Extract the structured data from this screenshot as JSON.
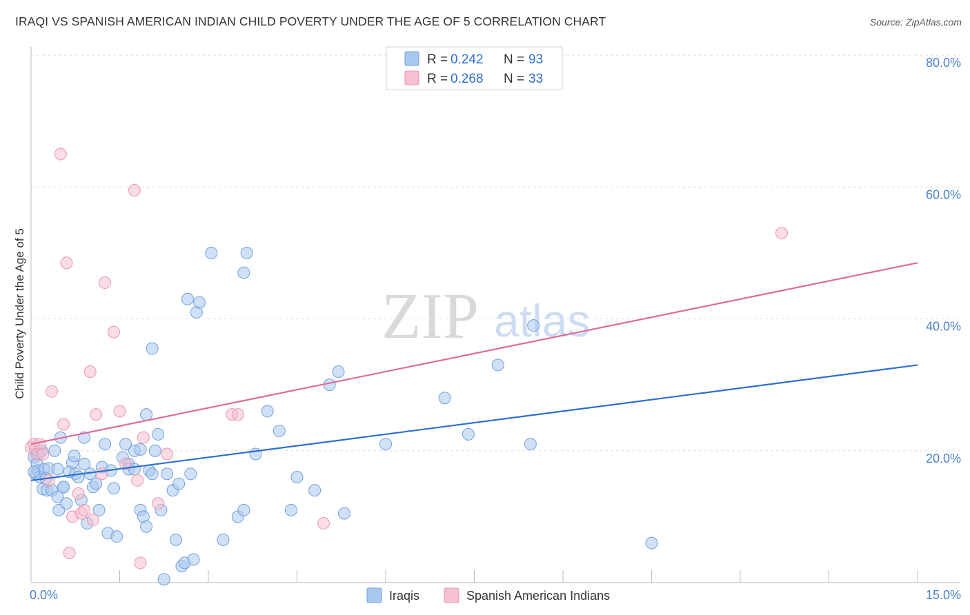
{
  "title": "IRAQI VS SPANISH AMERICAN INDIAN CHILD POVERTY UNDER THE AGE OF 5 CORRELATION CHART",
  "source": "Source: ZipAtlas.com",
  "watermark": {
    "zip": "ZIP",
    "atlas": "atlas"
  },
  "colors": {
    "iraqis_fill": "#a9c8f0",
    "iraqis_stroke": "#6f9fdc",
    "iraqis_line": "#2a6fd0",
    "spanish_fill": "#f6c0d0",
    "spanish_stroke": "#e896b0",
    "spanish_line": "#e06a96",
    "axis_label": "#4a7fcf",
    "grid": "#dddddd"
  },
  "legend": {
    "rows": [
      {
        "r_label": "R =",
        "r_value": "0.242",
        "n_label": "N =",
        "n_value": "93"
      },
      {
        "r_label": "R =",
        "r_value": "0.268",
        "n_label": "N =",
        "n_value": "33"
      }
    ]
  },
  "bottom_legend": [
    "Iraqis",
    "Spanish American Indians"
  ],
  "chart_data": {
    "type": "scatter",
    "title": "IRAQI VS SPANISH AMERICAN INDIAN CHILD POVERTY UNDER THE AGE OF 5 CORRELATION CHART",
    "xlabel": "",
    "ylabel": "Child Poverty Under the Age of 5",
    "xlim": [
      0,
      15
    ],
    "ylim": [
      0,
      80
    ],
    "x_tick_labels": [
      {
        "value": 0,
        "label": "0.0%"
      },
      {
        "value": 15,
        "label": "15.0%"
      }
    ],
    "y_tick_labels": [
      {
        "value": 20,
        "label": "20.0%"
      },
      {
        "value": 40,
        "label": "40.0%"
      },
      {
        "value": 60,
        "label": "60.0%"
      },
      {
        "value": 80,
        "label": "80.0%"
      }
    ],
    "x_minor_ticks": [
      0,
      1.5,
      3,
      4.5,
      6,
      7.5,
      9,
      10.5,
      12,
      13.5,
      15
    ],
    "series": [
      {
        "name": "Iraqis",
        "r": 0.242,
        "n": 93,
        "trend": {
          "x0": 0,
          "y0": 15.5,
          "x1": 15,
          "y1": 33.0
        },
        "points": [
          [
            0.05,
            19.0
          ],
          [
            0.07,
            20.2
          ],
          [
            0.08,
            16.5
          ],
          [
            0.1,
            18.0
          ],
          [
            0.12,
            17.0
          ],
          [
            0.13,
            19.5
          ],
          [
            0.15,
            16.0
          ],
          [
            0.18,
            20.0
          ],
          [
            0.2,
            14.2
          ],
          [
            0.22,
            17.2
          ],
          [
            0.25,
            15.8
          ],
          [
            0.27,
            14.0
          ],
          [
            0.3,
            17.3
          ],
          [
            0.35,
            14.0
          ],
          [
            0.4,
            20.0
          ],
          [
            0.45,
            13.0
          ],
          [
            0.45,
            17.2
          ],
          [
            0.47,
            11.0
          ],
          [
            0.5,
            22.0
          ],
          [
            0.55,
            14.5
          ],
          [
            0.6,
            12.0
          ],
          [
            0.65,
            16.8
          ],
          [
            0.7,
            18.2
          ],
          [
            0.73,
            19.2
          ],
          [
            0.75,
            16.5
          ],
          [
            0.8,
            16.0
          ],
          [
            0.85,
            12.5
          ],
          [
            0.9,
            22.0
          ],
          [
            0.9,
            18.0
          ],
          [
            0.95,
            9.0
          ],
          [
            1.0,
            16.5
          ],
          [
            1.05,
            14.5
          ],
          [
            1.1,
            15.0
          ],
          [
            1.15,
            11.0
          ],
          [
            1.2,
            17.5
          ],
          [
            1.25,
            21.0
          ],
          [
            1.3,
            7.5
          ],
          [
            1.35,
            17.0
          ],
          [
            1.45,
            7.0
          ],
          [
            1.55,
            19.0
          ],
          [
            1.6,
            21.0
          ],
          [
            1.65,
            18.0
          ],
          [
            1.75,
            20.0
          ],
          [
            1.85,
            11.0
          ],
          [
            1.9,
            10.0
          ],
          [
            1.95,
            8.5
          ],
          [
            1.95,
            25.5
          ],
          [
            2.0,
            17.0
          ],
          [
            2.05,
            16.5
          ],
          [
            2.1,
            20.0
          ],
          [
            2.15,
            22.5
          ],
          [
            2.2,
            11.0
          ],
          [
            2.3,
            16.5
          ],
          [
            2.4,
            14.0
          ],
          [
            2.45,
            6.5
          ],
          [
            2.5,
            15.0
          ],
          [
            2.55,
            2.5
          ],
          [
            2.6,
            3.0
          ],
          [
            2.65,
            43.0
          ],
          [
            2.7,
            16.5
          ],
          [
            2.75,
            3.5
          ],
          [
            2.8,
            41.0
          ],
          [
            2.85,
            42.5
          ],
          [
            3.05,
            50.0
          ],
          [
            3.25,
            6.5
          ],
          [
            3.5,
            10.0
          ],
          [
            3.6,
            11.0
          ],
          [
            3.6,
            47.0
          ],
          [
            3.65,
            50.0
          ],
          [
            3.8,
            19.5
          ],
          [
            4.0,
            26.0
          ],
          [
            4.2,
            23.0
          ],
          [
            4.4,
            11.0
          ],
          [
            4.5,
            16.0
          ],
          [
            4.8,
            14.0
          ],
          [
            5.05,
            30.0
          ],
          [
            5.2,
            32.0
          ],
          [
            5.3,
            10.5
          ],
          [
            6.0,
            21.0
          ],
          [
            7.0,
            28.0
          ],
          [
            7.4,
            22.5
          ],
          [
            7.9,
            33.0
          ],
          [
            8.45,
            21.0
          ],
          [
            8.5,
            39.0
          ],
          [
            10.5,
            6.0
          ],
          [
            1.65,
            17.2
          ],
          [
            1.85,
            20.2
          ],
          [
            2.05,
            35.5
          ],
          [
            0.05,
            16.8
          ],
          [
            0.55,
            14.5
          ],
          [
            1.4,
            14.3
          ],
          [
            1.75,
            17.2
          ],
          [
            2.25,
            0.5
          ]
        ]
      },
      {
        "name": "Spanish American Indians",
        "r": 0.268,
        "n": 33,
        "trend": {
          "x0": 0,
          "y0": 21.0,
          "x1": 15,
          "y1": 48.5
        },
        "points": [
          [
            0.0,
            20.5
          ],
          [
            0.05,
            21.0
          ],
          [
            0.1,
            19.5
          ],
          [
            0.15,
            21.0
          ],
          [
            0.2,
            19.5
          ],
          [
            0.3,
            15.5
          ],
          [
            0.35,
            29.0
          ],
          [
            0.5,
            65.0
          ],
          [
            0.55,
            24.0
          ],
          [
            0.6,
            48.5
          ],
          [
            0.65,
            4.5
          ],
          [
            0.7,
            10.0
          ],
          [
            0.8,
            13.5
          ],
          [
            0.85,
            10.5
          ],
          [
            0.9,
            11.0
          ],
          [
            1.0,
            32.0
          ],
          [
            1.05,
            9.5
          ],
          [
            1.1,
            25.5
          ],
          [
            1.2,
            16.5
          ],
          [
            1.25,
            45.5
          ],
          [
            1.4,
            38.0
          ],
          [
            1.5,
            26.0
          ],
          [
            1.6,
            18.0
          ],
          [
            1.75,
            59.5
          ],
          [
            1.8,
            15.5
          ],
          [
            1.85,
            3.0
          ],
          [
            1.9,
            22.0
          ],
          [
            2.15,
            12.0
          ],
          [
            2.3,
            19.5
          ],
          [
            3.4,
            25.5
          ],
          [
            3.5,
            25.5
          ],
          [
            4.95,
            9.0
          ],
          [
            12.7,
            53.0
          ]
        ]
      }
    ]
  }
}
